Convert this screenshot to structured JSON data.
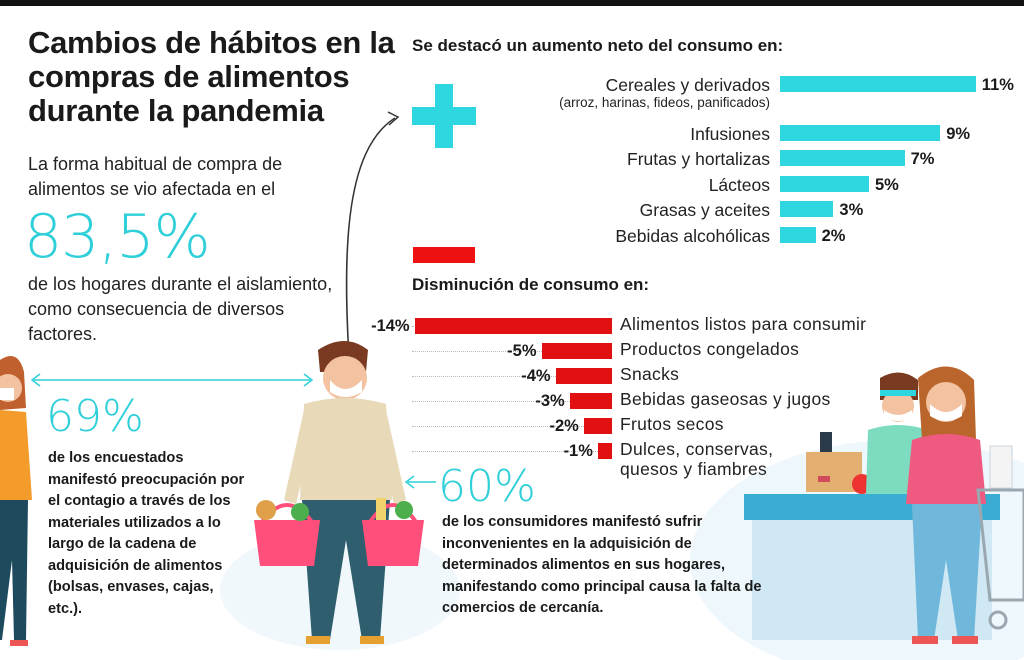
{
  "title": "Cambios de hábitos en la compras de alimentos durante la pandemia",
  "intro_text": "La forma habitual de compra de alimentos se vio afectada en el",
  "stat_main": {
    "value": "83,5%",
    "text": "de los hogares durante el aislamiento, como consecuencia de diversos factores."
  },
  "stat_69": {
    "value": "69%",
    "text": "de los encuestados manifestó preocupación por el contagio a través de los materiales utilizados a lo largo de la cadena de adquisición de alimentos (bolsas, envases, cajas, etc.)."
  },
  "stat_60": {
    "value": "60%",
    "text": "de los consumidores manifestó sufrir inconvenientes en la adquisición de determinados alimentos en sus hogares, manifestando como principal causa la falta de comercios de cercanía."
  },
  "colors": {
    "increase": "#2ed6df",
    "decrease": "#e11111",
    "accent_text": "#2ecfd8"
  },
  "chart_data": [
    {
      "type": "bar",
      "title": "Se destacó un aumento neto del consumo en:",
      "categories": [
        "Cereales y derivados",
        "Infusiones",
        "Frutas y hortalizas",
        "Lácteos",
        "Grasas y aceites",
        "Bebidas alcohólicas"
      ],
      "category_notes": [
        "(arroz, harinas, fideos, panificados)",
        "",
        "",
        "",
        "",
        ""
      ],
      "values": [
        11,
        9,
        7,
        5,
        3,
        2
      ],
      "labels": [
        "11%",
        "9%",
        "7%",
        "5%",
        "3%",
        "2%"
      ],
      "unit": "%",
      "orientation": "horizontal",
      "symbol": "plus-icon"
    },
    {
      "type": "bar",
      "title": "Disminución de consumo en:",
      "categories": [
        "Alimentos listos para consumir",
        "Productos congelados",
        "Snacks",
        "Bebidas gaseosas y jugos",
        "Frutos secos",
        "Dulces, conservas, quesos y fiambres"
      ],
      "values": [
        -14,
        -5,
        -4,
        -3,
        -2,
        -1
      ],
      "labels": [
        "-14%",
        "-5%",
        "-4%",
        "-3%",
        "-2%",
        "-1%"
      ],
      "unit": "%",
      "orientation": "horizontal",
      "symbol": "minus-icon"
    }
  ]
}
